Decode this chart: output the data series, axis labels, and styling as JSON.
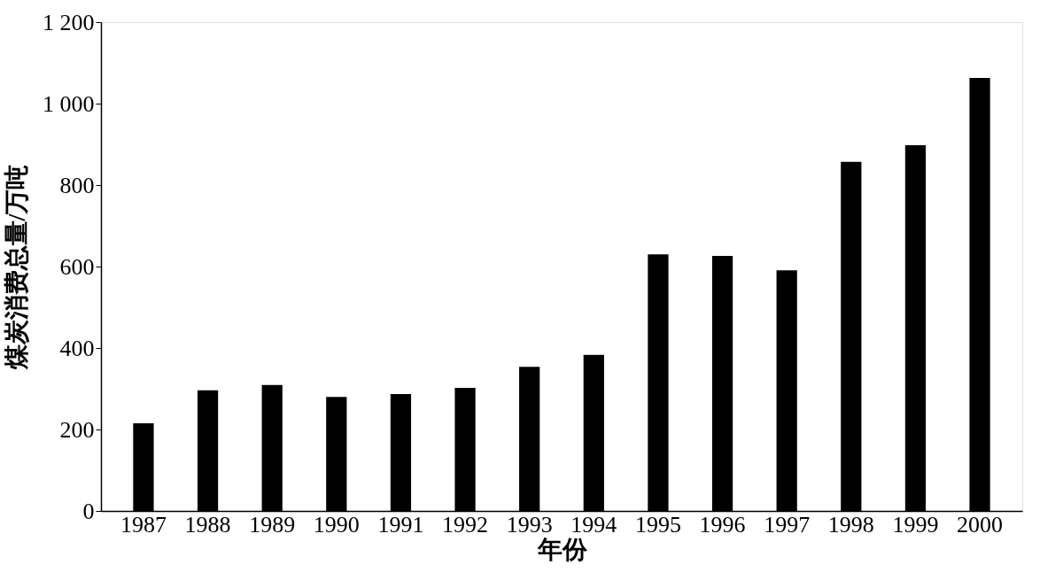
{
  "chart_data": {
    "type": "bar",
    "xlabel": "年份",
    "ylabel": "煤炭消费总量/万吨",
    "categories": [
      "1987",
      "1988",
      "1989",
      "1990",
      "1991",
      "1992",
      "1993",
      "1994",
      "1995",
      "1996",
      "1997",
      "1998",
      "1999",
      "2000"
    ],
    "values": [
      215,
      296,
      309,
      280,
      287,
      302,
      354,
      383,
      630,
      626,
      591,
      857,
      898,
      1063
    ],
    "color": "#000000",
    "ylim": [
      0,
      1200
    ],
    "yticks": [
      0,
      200,
      400,
      600,
      800,
      {
        "value": 1000,
        "label": "1 000"
      },
      {
        "value": 1200,
        "label": "1 200"
      }
    ]
  }
}
